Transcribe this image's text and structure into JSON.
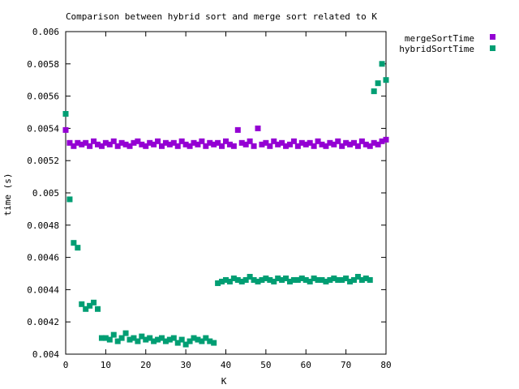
{
  "chart_data": {
    "type": "scatter",
    "title": "Comparison between hybrid sort and merge sort related to K",
    "xlabel": "K",
    "ylabel": "time (s)",
    "xlim": [
      0,
      80
    ],
    "ylim": [
      0.004,
      0.006
    ],
    "x_ticks": [
      "0",
      "10",
      "20",
      "30",
      "40",
      "50",
      "60",
      "70",
      "80"
    ],
    "y_ticks": [
      "0.004",
      "0.0042",
      "0.0044",
      "0.0046",
      "0.0048",
      "0.005",
      "0.0052",
      "0.0054",
      "0.0056",
      "0.0058",
      "0.006"
    ],
    "grid": false,
    "legend_position": "top-right, outside plot",
    "series": [
      {
        "name": "mergeSortTime",
        "color": "#9400d3",
        "x": [
          0,
          1,
          2,
          3,
          4,
          5,
          6,
          7,
          8,
          9,
          10,
          11,
          12,
          13,
          14,
          15,
          16,
          17,
          18,
          19,
          20,
          21,
          22,
          23,
          24,
          25,
          26,
          27,
          28,
          29,
          30,
          31,
          32,
          33,
          34,
          35,
          36,
          37,
          38,
          39,
          40,
          41,
          42,
          43,
          44,
          45,
          46,
          47,
          48,
          49,
          50,
          51,
          52,
          53,
          54,
          55,
          56,
          57,
          58,
          59,
          60,
          61,
          62,
          63,
          64,
          65,
          66,
          67,
          68,
          69,
          70,
          71,
          72,
          73,
          74,
          75,
          76,
          77,
          78,
          79,
          80
        ],
        "y": [
          0.00539,
          0.00531,
          0.00529,
          0.00531,
          0.0053,
          0.00531,
          0.00529,
          0.00532,
          0.0053,
          0.00529,
          0.00531,
          0.0053,
          0.00532,
          0.00529,
          0.00531,
          0.0053,
          0.00529,
          0.00531,
          0.00532,
          0.0053,
          0.00529,
          0.00531,
          0.0053,
          0.00532,
          0.00529,
          0.00531,
          0.0053,
          0.00531,
          0.00529,
          0.00532,
          0.0053,
          0.00529,
          0.00531,
          0.0053,
          0.00532,
          0.00529,
          0.00531,
          0.0053,
          0.00531,
          0.00529,
          0.00532,
          0.0053,
          0.00529,
          0.00539,
          0.00531,
          0.0053,
          0.00532,
          0.00529,
          0.0054,
          0.0053,
          0.00531,
          0.00529,
          0.00532,
          0.0053,
          0.00531,
          0.00529,
          0.0053,
          0.00532,
          0.00529,
          0.00531,
          0.0053,
          0.00531,
          0.00529,
          0.00532,
          0.0053,
          0.00529,
          0.00531,
          0.0053,
          0.00532,
          0.00529,
          0.00531,
          0.0053,
          0.00531,
          0.00529,
          0.00532,
          0.0053,
          0.00529,
          0.00531,
          0.0053,
          0.00532,
          0.00533
        ]
      },
      {
        "name": "hybridSortTime",
        "color": "#009e73",
        "x": [
          0,
          1,
          2,
          3,
          4,
          5,
          6,
          7,
          8,
          9,
          10,
          11,
          12,
          13,
          14,
          15,
          16,
          17,
          18,
          19,
          20,
          21,
          22,
          23,
          24,
          25,
          26,
          27,
          28,
          29,
          30,
          31,
          32,
          33,
          34,
          35,
          36,
          37,
          38,
          39,
          40,
          41,
          42,
          43,
          44,
          45,
          46,
          47,
          48,
          49,
          50,
          51,
          52,
          53,
          54,
          55,
          56,
          57,
          58,
          59,
          60,
          61,
          62,
          63,
          64,
          65,
          66,
          67,
          68,
          69,
          70,
          71,
          72,
          73,
          74,
          75,
          76,
          77,
          78,
          79,
          80
        ],
        "y": [
          0.00549,
          0.00496,
          0.00469,
          0.00466,
          0.00431,
          0.00428,
          0.0043,
          0.00432,
          0.00428,
          0.0041,
          0.0041,
          0.00409,
          0.00412,
          0.00408,
          0.0041,
          0.00413,
          0.00409,
          0.0041,
          0.00408,
          0.00411,
          0.00409,
          0.0041,
          0.00408,
          0.00409,
          0.0041,
          0.00408,
          0.00409,
          0.0041,
          0.00407,
          0.00409,
          0.00406,
          0.00408,
          0.0041,
          0.00409,
          0.00408,
          0.0041,
          0.00408,
          0.00407,
          0.00444,
          0.00445,
          0.00446,
          0.00445,
          0.00447,
          0.00446,
          0.00445,
          0.00446,
          0.00448,
          0.00446,
          0.00445,
          0.00446,
          0.00447,
          0.00446,
          0.00445,
          0.00447,
          0.00446,
          0.00447,
          0.00445,
          0.00446,
          0.00446,
          0.00447,
          0.00446,
          0.00445,
          0.00447,
          0.00446,
          0.00446,
          0.00445,
          0.00446,
          0.00447,
          0.00446,
          0.00446,
          0.00447,
          0.00445,
          0.00446,
          0.00448,
          0.00446,
          0.00447,
          0.00446,
          0.00563,
          0.00568,
          0.0058,
          0.0057
        ]
      }
    ]
  }
}
